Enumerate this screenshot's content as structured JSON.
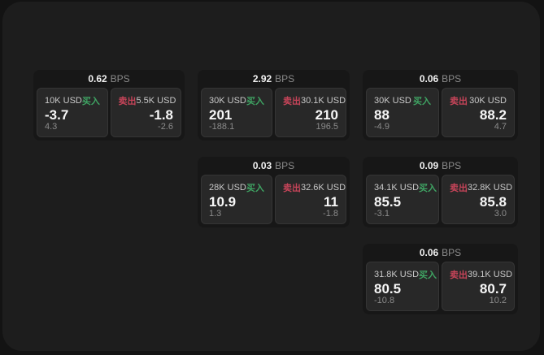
{
  "labels": {
    "bps_unit": "BPS",
    "buy": "买入",
    "sell": "卖出"
  },
  "colors": {
    "page_bg": "#131313",
    "window_bg": "#1d1d1d",
    "card_bg": "#171717",
    "tile_bg": "#282828",
    "buy_green": "#3fa463",
    "sell_red": "#c64459"
  },
  "cards": [
    {
      "bps": "0.62",
      "buy": {
        "notional": "10K USD",
        "price": "-3.7",
        "delta": "4.3"
      },
      "sell": {
        "notional": "5.5K USD",
        "price": "-1.8",
        "delta": "-2.6"
      }
    },
    {
      "bps": "2.92",
      "buy": {
        "notional": "30K USD",
        "price": "201",
        "delta": "-188.1"
      },
      "sell": {
        "notional": "30.1K USD",
        "price": "210",
        "delta": "196.5"
      }
    },
    {
      "bps": "0.06",
      "buy": {
        "notional": "30K USD",
        "price": "88",
        "delta": "-4.9"
      },
      "sell": {
        "notional": "30K USD",
        "price": "88.2",
        "delta": "4.7"
      }
    },
    {
      "bps": "0.03",
      "buy": {
        "notional": "28K USD",
        "price": "10.9",
        "delta": "1.3"
      },
      "sell": {
        "notional": "32.6K USD",
        "price": "11",
        "delta": "-1.8"
      }
    },
    {
      "bps": "0.09",
      "buy": {
        "notional": "34.1K USD",
        "price": "85.5",
        "delta": "-3.1"
      },
      "sell": {
        "notional": "32.8K USD",
        "price": "85.8",
        "delta": "3.0"
      }
    },
    {
      "bps": "0.06",
      "buy": {
        "notional": "31.8K USD",
        "price": "80.5",
        "delta": "-10.8"
      },
      "sell": {
        "notional": "39.1K USD",
        "price": "80.7",
        "delta": "10.2"
      }
    }
  ]
}
